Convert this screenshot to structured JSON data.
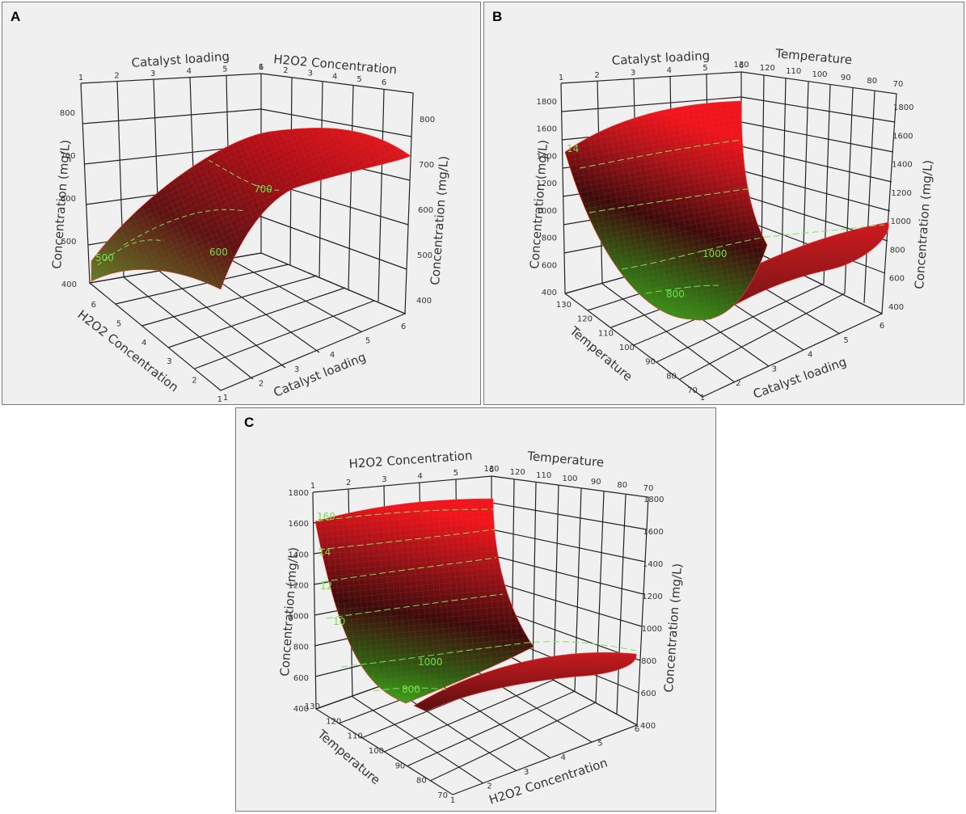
{
  "chart_data": [
    {
      "type": "surface3d",
      "panel": "A",
      "x": {
        "label": "Catalyst loading",
        "range": [
          1,
          6
        ],
        "ticks": [
          1,
          2,
          3,
          4,
          5,
          6
        ]
      },
      "y": {
        "label": "H2O2 Concentration",
        "range": [
          1,
          6
        ],
        "ticks": [
          1,
          2,
          3,
          4,
          5,
          6
        ]
      },
      "z": {
        "label": "Concentration (mg/L)",
        "range": [
          400,
          800
        ],
        "ticks": [
          400,
          500,
          600,
          700,
          800
        ]
      },
      "contour_labels": [
        "500",
        "600",
        "700"
      ],
      "surface_colors": {
        "low": "#39c21a",
        "mid": "#3a0d0d",
        "high": "#e8121b"
      },
      "grid": true
    },
    {
      "type": "surface3d",
      "panel": "B",
      "x": {
        "label": "Catalyst loading",
        "range": [
          1,
          6
        ],
        "ticks": [
          1,
          2,
          3,
          4,
          5,
          6
        ]
      },
      "y": {
        "label": "Temperature",
        "range": [
          70,
          130
        ],
        "ticks": [
          70,
          80,
          90,
          100,
          110,
          120,
          130
        ]
      },
      "z": {
        "label": "Concentration (mg/L)",
        "range": [
          400,
          1800
        ],
        "ticks": [
          400,
          600,
          800,
          1000,
          1200,
          1400,
          1600,
          1800
        ]
      },
      "contour_labels": [
        "800",
        "1000",
        "14"
      ],
      "surface_colors": {
        "low": "#39c21a",
        "mid": "#3a0d0d",
        "high": "#e8121b"
      },
      "grid": true
    },
    {
      "type": "surface3d",
      "panel": "C",
      "x": {
        "label": "H2O2 Concentration",
        "range": [
          1,
          6
        ],
        "ticks": [
          1,
          2,
          3,
          4,
          5,
          6
        ]
      },
      "y": {
        "label": "Temperature",
        "range": [
          70,
          130
        ],
        "ticks": [
          70,
          80,
          90,
          100,
          110,
          120,
          130
        ]
      },
      "z": {
        "label": "Concentration (mg/L)",
        "range": [
          400,
          1800
        ],
        "ticks": [
          400,
          600,
          800,
          1000,
          1200,
          1400,
          1600,
          1800
        ]
      },
      "contour_labels": [
        "800",
        "1000",
        "10",
        "12",
        "14",
        "160"
      ],
      "surface_colors": {
        "low": "#39c21a",
        "mid": "#3a0d0d",
        "high": "#e8121b"
      },
      "grid": true
    }
  ]
}
